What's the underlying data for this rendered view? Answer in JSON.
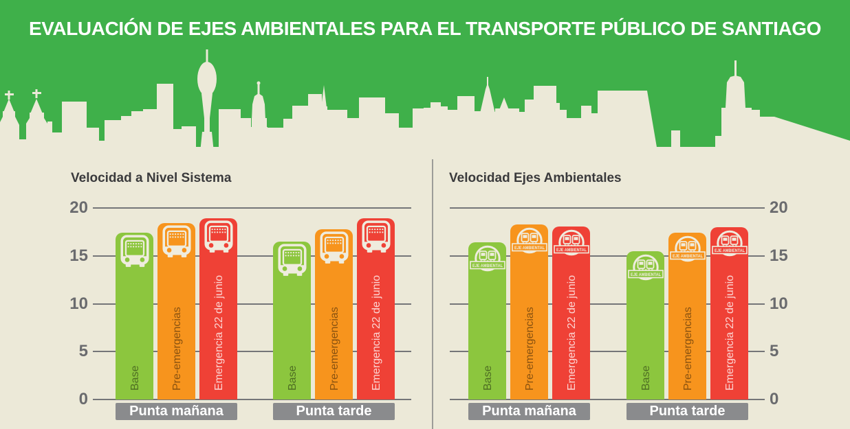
{
  "page_title": "EVALUACIÓN DE EJES AMBIENTALES PARA EL TRANSPORTE PÚBLICO DE SANTIAGO",
  "colors": {
    "header_green": "#3FB04A",
    "background_cream": "#ECE9D8",
    "bar_green": "#8CC63E",
    "bar_orange": "#F7941D",
    "bar_red": "#EF4136",
    "group_box_gray": "#8A8B8D",
    "gridline_gray": "#747578",
    "axis_label_gray": "#6A6B6E",
    "chart_title_gray": "#3A3A3C",
    "icon_cream": "#EFECDE"
  },
  "chart_data": [
    {
      "type": "bar",
      "title": "Velocidad a Nivel Sistema",
      "categories": [
        "Punta mañana",
        "Punta tarde"
      ],
      "series": [
        {
          "name": "Base",
          "values": [
            17.4,
            16.5
          ],
          "color": "#8CC63E",
          "label_color": "rgba(0,0,0,0.45)",
          "icon": "bus-front-icon"
        },
        {
          "name": "Pre-emergencias",
          "values": [
            18.4,
            17.8
          ],
          "color": "#F7941D",
          "label_color": "rgba(0,0,0,0.45)",
          "icon": "bus-front-icon"
        },
        {
          "name": "Emergencia 22 de junio",
          "values": [
            18.9,
            18.9
          ],
          "color": "#EF4136",
          "label_color": "rgba(255,255,255,0.78)",
          "icon": "bus-front-icon"
        }
      ],
      "ylim": [
        0,
        20
      ],
      "yticks": [
        0,
        5,
        10,
        15,
        20
      ],
      "axis_side": "left",
      "grid": true,
      "legend": "none"
    },
    {
      "type": "bar",
      "title": "Velocidad Ejes Ambientales",
      "categories": [
        "Punta mañana",
        "Punta tarde"
      ],
      "badge_label": "EJE AMBIENTAL",
      "series": [
        {
          "name": "Base",
          "values": [
            16.4,
            15.5
          ],
          "color": "#8CC63E",
          "label_color": "rgba(0,0,0,0.45)",
          "icon": "eje-ambiental-badge-icon"
        },
        {
          "name": "Pre-emergencias",
          "values": [
            18.3,
            17.4
          ],
          "color": "#F7941D",
          "label_color": "rgba(0,0,0,0.45)",
          "icon": "eje-ambiental-badge-icon"
        },
        {
          "name": "Emergencia 22 de junio",
          "values": [
            18.1,
            18.0
          ],
          "color": "#EF4136",
          "label_color": "rgba(255,255,255,0.78)",
          "icon": "eje-ambiental-badge-icon"
        }
      ],
      "ylim": [
        0,
        20
      ],
      "yticks": [
        0,
        5,
        10,
        15,
        20
      ],
      "axis_side": "right",
      "grid": true,
      "legend": "none"
    }
  ]
}
